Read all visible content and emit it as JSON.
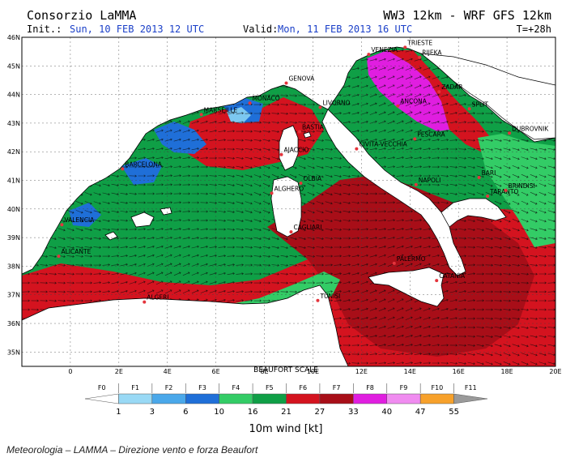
{
  "header": {
    "title": "Consorzio LaMMA",
    "init_label": "Init.:",
    "init_value": "Sun, 10 FEB 2013  12 UTC",
    "valid_label": "Valid:",
    "valid_value": "Mon, 11 FEB 2013  16 UTC",
    "model": "WW3 12km - WRF GFS 12km",
    "forecast_step": "T=+28h"
  },
  "map": {
    "lat_labels": [
      "46N",
      "45N",
      "44N",
      "43N",
      "42N",
      "41N",
      "40N",
      "39N",
      "38N",
      "37N",
      "36N",
      "35N"
    ],
    "lon_labels": [
      "0",
      "2E",
      "4E",
      "6E",
      "8E",
      "10E",
      "12E",
      "14E",
      "16E",
      "18E",
      "20E"
    ],
    "colors": {
      "sea_green_dark": "#0f9f46",
      "sea_green_light": "#33cc66",
      "sea_red": "#d4131f",
      "sea_red_dark": "#a80e18",
      "sea_blue": "#1f6fd8",
      "sea_cyan": "#7cc8f0",
      "sea_magenta": "#e01ee0",
      "land": "#ffffff",
      "arrow": "#0b0b0b",
      "city_dot": "#e4343c"
    },
    "cities": [
      {
        "name": "VENEZIA",
        "lon": 12.3,
        "lat": 45.4
      },
      {
        "name": "TRIESTE",
        "lon": 13.8,
        "lat": 45.65
      },
      {
        "name": "RIJEKA",
        "lon": 14.4,
        "lat": 45.3
      },
      {
        "name": "ZADAR",
        "lon": 15.2,
        "lat": 44.1
      },
      {
        "name": "SPLIT",
        "lon": 16.45,
        "lat": 43.5
      },
      {
        "name": "DUBROVNIK",
        "lon": 18.1,
        "lat": 42.65
      },
      {
        "name": "MONACO",
        "lon": 7.4,
        "lat": 43.7
      },
      {
        "name": "GENOVA",
        "lon": 8.9,
        "lat": 44.4
      },
      {
        "name": "MARSEILLE",
        "lon": 5.4,
        "lat": 43.3
      },
      {
        "name": "LIVORNO",
        "lon": 10.3,
        "lat": 43.55
      },
      {
        "name": "ANCONA",
        "lon": 13.5,
        "lat": 43.6
      },
      {
        "name": "PESCARA",
        "lon": 14.2,
        "lat": 42.45
      },
      {
        "name": "BASTIA",
        "lon": 9.45,
        "lat": 42.7
      },
      {
        "name": "AJACCIO",
        "lon": 8.7,
        "lat": 41.9
      },
      {
        "name": "CIVITA-VECCHIA",
        "lon": 11.8,
        "lat": 42.1
      },
      {
        "name": "BARCELONA",
        "lon": 2.15,
        "lat": 41.4
      },
      {
        "name": "OLBIA",
        "lon": 9.5,
        "lat": 40.9
      },
      {
        "name": "ALGHERO",
        "lon": 8.3,
        "lat": 40.55
      },
      {
        "name": "NAPOLI",
        "lon": 14.25,
        "lat": 40.85
      },
      {
        "name": "BARI",
        "lon": 16.85,
        "lat": 41.1
      },
      {
        "name": "TARANTO",
        "lon": 17.2,
        "lat": 40.45
      },
      {
        "name": "BRINDISI",
        "lon": 17.95,
        "lat": 40.65
      },
      {
        "name": "VALENCIA",
        "lon": -0.35,
        "lat": 39.45
      },
      {
        "name": "CAGLIARI",
        "lon": 9.1,
        "lat": 39.2
      },
      {
        "name": "ALICANTE",
        "lon": -0.48,
        "lat": 38.35
      },
      {
        "name": "PALERMO",
        "lon": 13.35,
        "lat": 38.1
      },
      {
        "name": "CATANIA",
        "lon": 15.1,
        "lat": 37.5
      },
      {
        "name": "ALGERI",
        "lon": 3.05,
        "lat": 36.75
      },
      {
        "name": "TUNISI",
        "lon": 10.2,
        "lat": 36.8
      }
    ]
  },
  "legend": {
    "title": "BEAUFORT SCALE",
    "force_labels": [
      "F0",
      "F1",
      "F2",
      "F3",
      "F4",
      "F5",
      "F6",
      "F7",
      "F8",
      "F9",
      "F10",
      "F11"
    ],
    "speed_labels": [
      "1",
      "3",
      "6",
      "10",
      "16",
      "21",
      "27",
      "33",
      "40",
      "47",
      "55"
    ],
    "unit_label": "10m wind [kt]",
    "colors": [
      "#ffffff",
      "#99d9f5",
      "#4aa8ea",
      "#1f6fd8",
      "#33cc66",
      "#0f9f46",
      "#d4131f",
      "#a80e18",
      "#e01ee0",
      "#f08cf0",
      "#f7a12b",
      "#9a9a9a"
    ]
  },
  "caption": "Meteorologia – LAMMA – Direzione vento e forza Beaufort"
}
